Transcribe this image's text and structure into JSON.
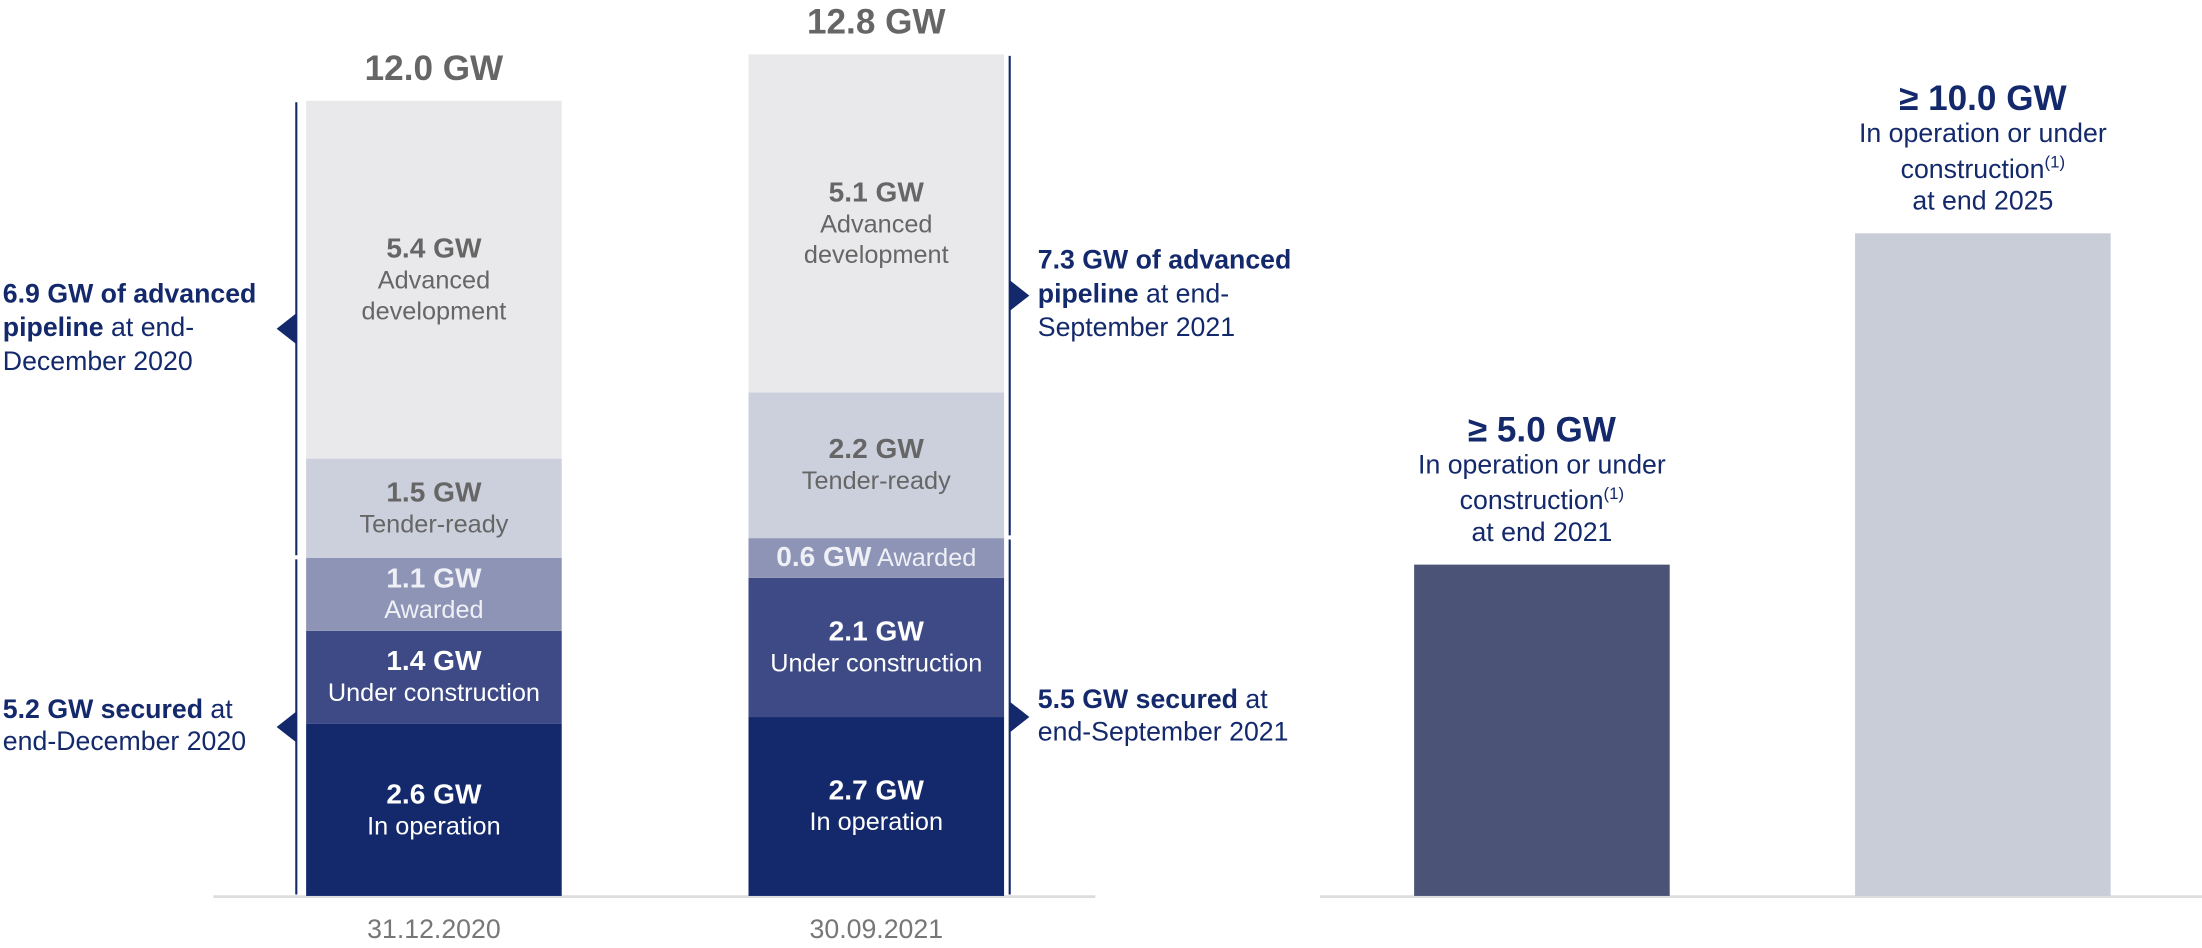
{
  "chart_data": {
    "type": "bar",
    "stacked": true,
    "categories": [
      "31.12.2020",
      "30.09.2021"
    ],
    "ylim": [
      0,
      13.5
    ],
    "series": [
      {
        "name": "In operation",
        "color": "#13296b",
        "values": [
          2.6,
          2.7
        ],
        "value_labels": [
          "2.6 GW",
          "2.7 GW"
        ]
      },
      {
        "name": "Under construction",
        "color": "#3d4a86",
        "values": [
          1.4,
          2.1
        ],
        "value_labels": [
          "1.4 GW",
          "2.1 GW"
        ]
      },
      {
        "name": "Awarded",
        "color": "#8d94b6",
        "values": [
          1.1,
          0.6
        ],
        "value_labels": [
          "1.1 GW",
          "0.6 GW"
        ]
      },
      {
        "name": "Tender-ready",
        "color": "#ccd0dc",
        "values": [
          1.5,
          2.2
        ],
        "value_labels": [
          "1.5 GW",
          "2.2 GW"
        ]
      },
      {
        "name": "Advanced development",
        "color": "#e9e9eb",
        "values": [
          5.4,
          5.1
        ],
        "value_labels": [
          "5.4 GW",
          "5.1 GW"
        ]
      }
    ],
    "totals": {
      "values": [
        12.0,
        12.8
      ],
      "value_labels": [
        "12.0 GW",
        "12.8 GW"
      ]
    },
    "annotations": [
      {
        "bar": 0,
        "side": "left",
        "from_series": 3,
        "to_series": 4,
        "bold": "6.9 GW of advanced pipeline",
        "text": " at end-December 2020"
      },
      {
        "bar": 0,
        "side": "left",
        "from_series": 0,
        "to_series": 2,
        "bold": "5.2 GW secured",
        "text": " at end-December 2020"
      },
      {
        "bar": 1,
        "side": "right",
        "from_series": 3,
        "to_series": 4,
        "bold": "7.3 GW of advanced pipeline",
        "text": " at end-September 2021"
      },
      {
        "bar": 1,
        "side": "right",
        "from_series": 0,
        "to_series": 2,
        "bold": "5.5 GW secured",
        "text": " at end-September 2021"
      }
    ],
    "targets": [
      {
        "value": 5.0,
        "value_label": "≥ 5.0 GW",
        "color": "#4b5377",
        "text": "In operation or under construction",
        "note": "(1)",
        "tail": "at end 2021"
      },
      {
        "value": 10.0,
        "value_label": "≥ 10.0 GW",
        "color": "#c9cdd7",
        "text": "In operation or under construction",
        "note": "(1)",
        "tail": "at end 2025"
      }
    ]
  }
}
